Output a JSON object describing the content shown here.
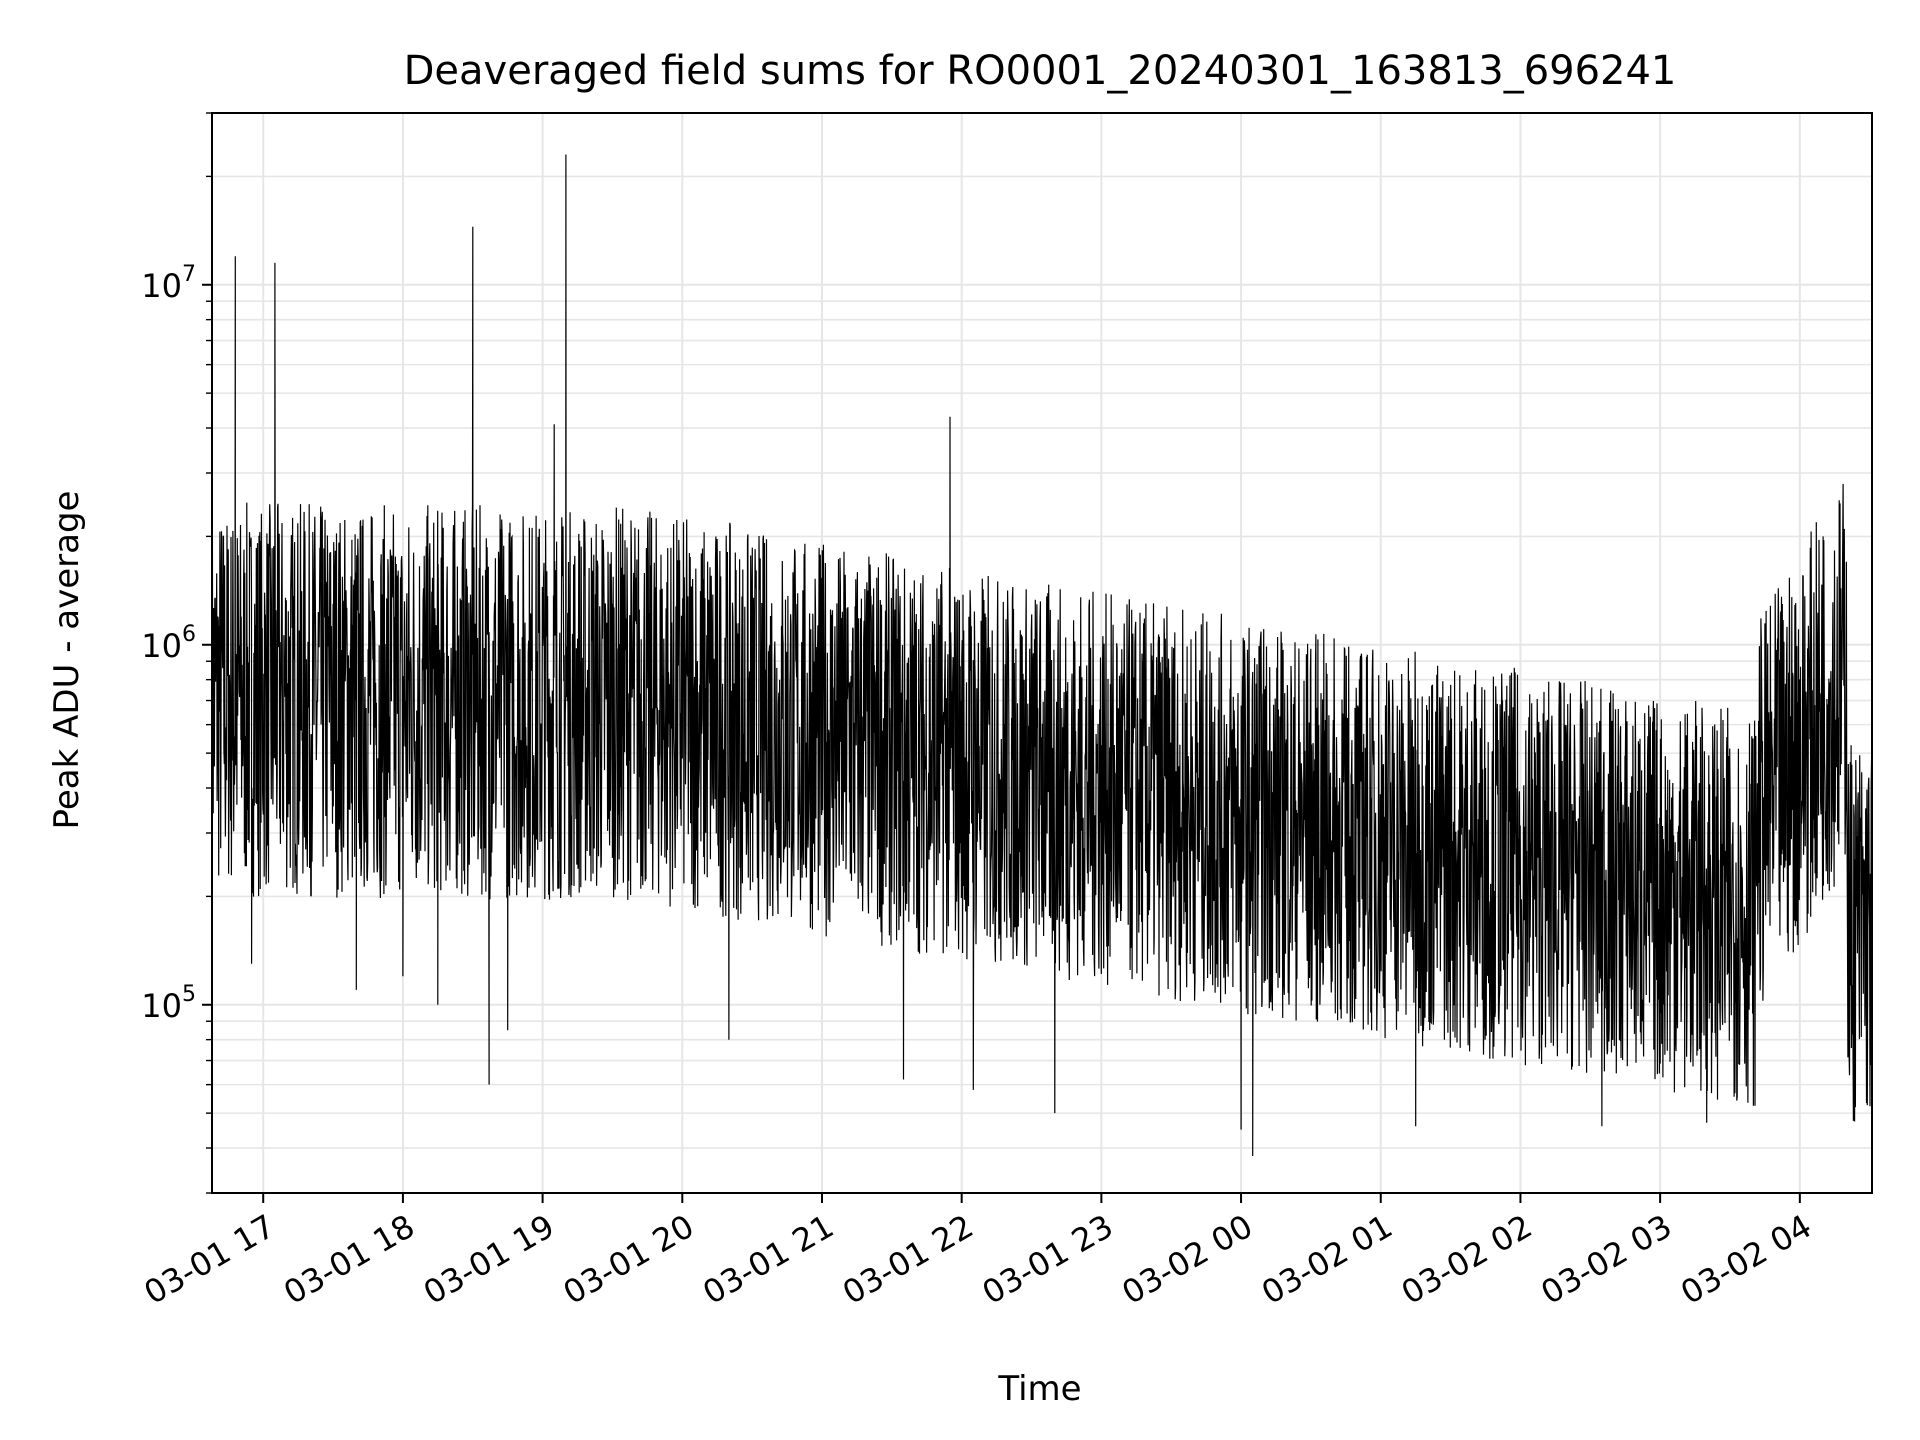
{
  "chart_data": {
    "type": "line",
    "title": "Deaveraged field sums for RO0001_20240301_163813_696241",
    "xlabel": "Time",
    "ylabel": "Peak ADU - average",
    "yscale": "log",
    "ylim": [
      30000,
      30000000
    ],
    "xlim": [
      "2024-03-01 16:38",
      "2024-03-02 04:31"
    ],
    "grid": true,
    "line_color": "#000000",
    "grid_color": "#e6e6e6",
    "y_ticks": [
      {
        "base": "10",
        "exp": "5",
        "value": 100000
      },
      {
        "base": "10",
        "exp": "6",
        "value": 1000000
      },
      {
        "base": "10",
        "exp": "7",
        "value": 10000000
      }
    ],
    "x_ticks": [
      {
        "label": "03-01 17",
        "time": "2024-03-01 17:00"
      },
      {
        "label": "03-01 18",
        "time": "2024-03-01 18:00"
      },
      {
        "label": "03-01 19",
        "time": "2024-03-01 19:00"
      },
      {
        "label": "03-01 20",
        "time": "2024-03-01 20:00"
      },
      {
        "label": "03-01 21",
        "time": "2024-03-01 21:00"
      },
      {
        "label": "03-01 22",
        "time": "2024-03-01 22:00"
      },
      {
        "label": "03-01 23",
        "time": "2024-03-01 23:00"
      },
      {
        "label": "03-02 00",
        "time": "2024-03-02 00:00"
      },
      {
        "label": "03-02 01",
        "time": "2024-03-02 01:00"
      },
      {
        "label": "03-02 02",
        "time": "2024-03-02 02:00"
      },
      {
        "label": "03-02 03",
        "time": "2024-03-02 03:00"
      },
      {
        "label": "03-02 04",
        "time": "2024-03-02 04:00"
      }
    ],
    "series": [
      {
        "values_note_free": true,
        "points": [
          {
            "t": "2024-03-01 16:38",
            "v": 800000
          },
          {
            "t": "2024-03-01 16:45",
            "v": 1700000
          },
          {
            "t": "2024-03-01 16:48",
            "v": 12000000
          },
          {
            "t": "2024-03-01 16:55",
            "v": 130000
          },
          {
            "t": "2024-03-01 17:05",
            "v": 11500000
          },
          {
            "t": "2024-03-01 17:30",
            "v": 1300000
          },
          {
            "t": "2024-03-01 17:40",
            "v": 110000
          },
          {
            "t": "2024-03-01 18:00",
            "v": 120000
          },
          {
            "t": "2024-03-01 18:15",
            "v": 100000
          },
          {
            "t": "2024-03-01 18:30",
            "v": 14500000
          },
          {
            "t": "2024-03-01 18:37",
            "v": 60000
          },
          {
            "t": "2024-03-01 18:45",
            "v": 85000
          },
          {
            "t": "2024-03-01 19:05",
            "v": 4100000
          },
          {
            "t": "2024-03-01 19:10",
            "v": 23000000
          },
          {
            "t": "2024-03-01 20:20",
            "v": 80000
          },
          {
            "t": "2024-03-01 21:35",
            "v": 62000
          },
          {
            "t": "2024-03-01 21:55",
            "v": 4300000
          },
          {
            "t": "2024-03-01 22:05",
            "v": 58000
          },
          {
            "t": "2024-03-01 22:40",
            "v": 50000
          },
          {
            "t": "2024-03-02 00:00",
            "v": 45000
          },
          {
            "t": "2024-03-02 00:05",
            "v": 38000
          },
          {
            "t": "2024-03-02 01:15",
            "v": 46000
          },
          {
            "t": "2024-03-02 02:35",
            "v": 46000
          },
          {
            "t": "2024-03-02 03:20",
            "v": 47000
          },
          {
            "t": "2024-03-02 04:10",
            "v": 2000000
          },
          {
            "t": "2024-03-02 04:20",
            "v": 1700000
          },
          {
            "t": "2024-03-02 04:31",
            "v": 100000
          }
        ]
      }
    ]
  }
}
